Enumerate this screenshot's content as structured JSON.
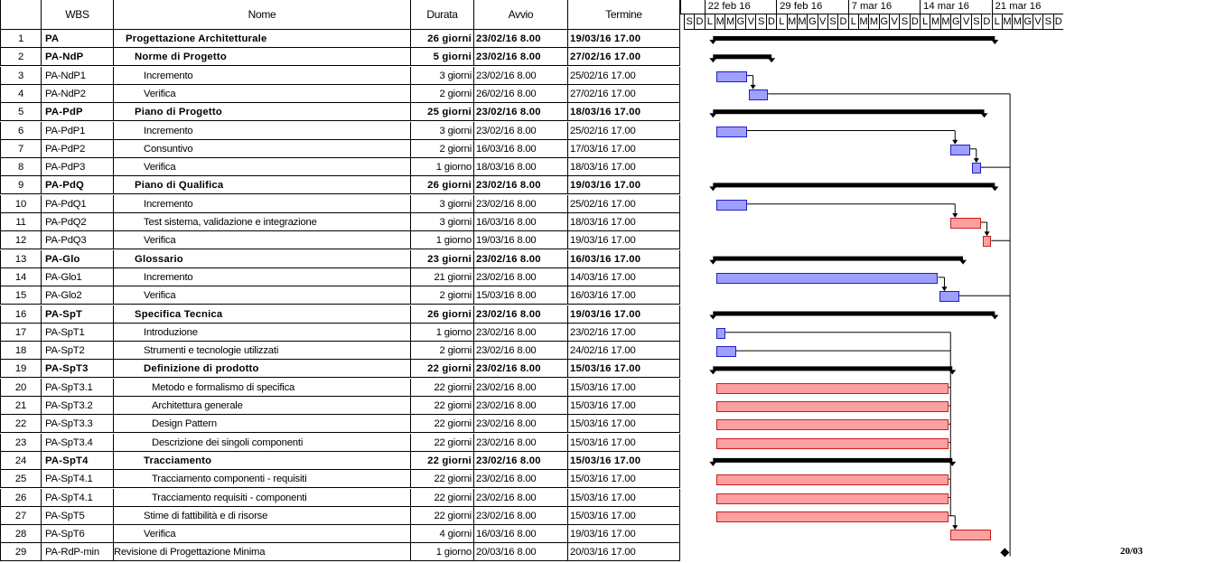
{
  "columns": {
    "num": "",
    "wbs": "WBS",
    "name": "Nome",
    "duration": "Durata",
    "start": "Avvio",
    "end": "Termine"
  },
  "timeline": {
    "weeks": [
      "22 feb 16",
      "29 feb 16",
      "7 mar 16",
      "14 mar 16",
      "21 mar 16"
    ],
    "days": [
      "S",
      "D",
      "L",
      "M",
      "M",
      "G",
      "V",
      "S",
      "D",
      "L",
      "M",
      "M",
      "G",
      "V",
      "S",
      "D",
      "L",
      "M",
      "M",
      "G",
      "V",
      "S",
      "D",
      "L",
      "M",
      "M",
      "G",
      "V",
      "S",
      "D",
      "L",
      "M",
      "M",
      "G",
      "V",
      "S",
      "D"
    ]
  },
  "colors": {
    "normal_task": "#9f9fff",
    "critical_task": "#ffa0a0",
    "summary": "#000000"
  },
  "milestone_label": "20/03",
  "tasks": [
    {
      "num": "1",
      "wbs": "PA",
      "name": "Progettazione Architetturale",
      "duration": "26 giorni",
      "start": "23/02/16 8.00",
      "end": "19/03/16 17.00",
      "indent": 1,
      "bold": true,
      "kind": "summary"
    },
    {
      "num": "2",
      "wbs": "PA-NdP",
      "name": "Norme di Progetto",
      "duration": "5 giorni",
      "start": "23/02/16 8.00",
      "end": "27/02/16 17.00",
      "indent": 2,
      "bold": true,
      "kind": "summary"
    },
    {
      "num": "3",
      "wbs": "PA-NdP1",
      "name": "Incremento",
      "duration": "3 giorni",
      "start": "23/02/16 8.00",
      "end": "25/02/16 17.00",
      "indent": 3,
      "bold": false,
      "kind": "normal"
    },
    {
      "num": "4",
      "wbs": "PA-NdP2",
      "name": "Verifica",
      "duration": "2 giorni",
      "start": "26/02/16 8.00",
      "end": "27/02/16 17.00",
      "indent": 3,
      "bold": false,
      "kind": "normal"
    },
    {
      "num": "5",
      "wbs": "PA-PdP",
      "name": "Piano di Progetto",
      "duration": "25 giorni",
      "start": "23/02/16 8.00",
      "end": "18/03/16 17.00",
      "indent": 2,
      "bold": true,
      "kind": "summary"
    },
    {
      "num": "6",
      "wbs": "PA-PdP1",
      "name": "Incremento",
      "duration": "3 giorni",
      "start": "23/02/16 8.00",
      "end": "25/02/16 17.00",
      "indent": 3,
      "bold": false,
      "kind": "normal"
    },
    {
      "num": "7",
      "wbs": "PA-PdP2",
      "name": "Consuntivo",
      "duration": "2 giorni",
      "start": "16/03/16 8.00",
      "end": "17/03/16 17.00",
      "indent": 3,
      "bold": false,
      "kind": "normal"
    },
    {
      "num": "8",
      "wbs": "PA-PdP3",
      "name": "Verifica",
      "duration": "1 giorno",
      "start": "18/03/16 8.00",
      "end": "18/03/16 17.00",
      "indent": 3,
      "bold": false,
      "kind": "normal"
    },
    {
      "num": "9",
      "wbs": "PA-PdQ",
      "name": "Piano di Qualifica",
      "duration": "26 giorni",
      "start": "23/02/16 8.00",
      "end": "19/03/16 17.00",
      "indent": 2,
      "bold": true,
      "kind": "summary"
    },
    {
      "num": "10",
      "wbs": "PA-PdQ1",
      "name": "Incremento",
      "duration": "3 giorni",
      "start": "23/02/16 8.00",
      "end": "25/02/16 17.00",
      "indent": 3,
      "bold": false,
      "kind": "normal"
    },
    {
      "num": "11",
      "wbs": "PA-PdQ2",
      "name": "Test sistema, validazione e integrazione",
      "duration": "3 giorni",
      "start": "16/03/16 8.00",
      "end": "18/03/16 17.00",
      "indent": 3,
      "bold": false,
      "kind": "critical"
    },
    {
      "num": "12",
      "wbs": "PA-PdQ3",
      "name": "Verifica",
      "duration": "1 giorno",
      "start": "19/03/16 8.00",
      "end": "19/03/16 17.00",
      "indent": 3,
      "bold": false,
      "kind": "critical"
    },
    {
      "num": "13",
      "wbs": "PA-Glo",
      "name": "Glossario",
      "duration": "23 giorni",
      "start": "23/02/16 8.00",
      "end": "16/03/16 17.00",
      "indent": 2,
      "bold": true,
      "kind": "summary"
    },
    {
      "num": "14",
      "wbs": "PA-Glo1",
      "name": "Incremento",
      "duration": "21 giorni",
      "start": "23/02/16 8.00",
      "end": "14/03/16 17.00",
      "indent": 3,
      "bold": false,
      "kind": "normal"
    },
    {
      "num": "15",
      "wbs": "PA-Glo2",
      "name": "Verifica",
      "duration": "2 giorni",
      "start": "15/03/16 8.00",
      "end": "16/03/16 17.00",
      "indent": 3,
      "bold": false,
      "kind": "normal"
    },
    {
      "num": "16",
      "wbs": "PA-SpT",
      "name": "Specifica Tecnica",
      "duration": "26 giorni",
      "start": "23/02/16 8.00",
      "end": "19/03/16 17.00",
      "indent": 2,
      "bold": true,
      "kind": "summary"
    },
    {
      "num": "17",
      "wbs": "PA-SpT1",
      "name": "Introduzione",
      "duration": "1 giorno",
      "start": "23/02/16 8.00",
      "end": "23/02/16 17.00",
      "indent": 3,
      "bold": false,
      "kind": "normal"
    },
    {
      "num": "18",
      "wbs": "PA-SpT2",
      "name": "Strumenti e tecnologie utilizzati",
      "duration": "2 giorni",
      "start": "23/02/16 8.00",
      "end": "24/02/16 17.00",
      "indent": 3,
      "bold": false,
      "kind": "normal"
    },
    {
      "num": "19",
      "wbs": "PA-SpT3",
      "name": "Definizione di prodotto",
      "duration": "22 giorni",
      "start": "23/02/16 8.00",
      "end": "15/03/16 17.00",
      "indent": 3,
      "bold": true,
      "kind": "summary"
    },
    {
      "num": "20",
      "wbs": "PA-SpT3.1",
      "name": "Metodo e formalismo di specifica",
      "duration": "22 giorni",
      "start": "23/02/16 8.00",
      "end": "15/03/16 17.00",
      "indent": 4,
      "bold": false,
      "kind": "critical"
    },
    {
      "num": "21",
      "wbs": "PA-SpT3.2",
      "name": "Architettura generale",
      "duration": "22 giorni",
      "start": "23/02/16 8.00",
      "end": "15/03/16 17.00",
      "indent": 4,
      "bold": false,
      "kind": "critical"
    },
    {
      "num": "22",
      "wbs": "PA-SpT3.3",
      "name": "Design Pattern",
      "duration": "22 giorni",
      "start": "23/02/16 8.00",
      "end": "15/03/16 17.00",
      "indent": 4,
      "bold": false,
      "kind": "critical"
    },
    {
      "num": "23",
      "wbs": "PA-SpT3.4",
      "name": "Descrizione dei singoli componenti",
      "duration": "22 giorni",
      "start": "23/02/16 8.00",
      "end": "15/03/16 17.00",
      "indent": 4,
      "bold": false,
      "kind": "critical"
    },
    {
      "num": "24",
      "wbs": "PA-SpT4",
      "name": "Tracciamento",
      "duration": "22 giorni",
      "start": "23/02/16 8.00",
      "end": "15/03/16 17.00",
      "indent": 3,
      "bold": true,
      "kind": "summary"
    },
    {
      "num": "25",
      "wbs": "PA-SpT4.1",
      "name": "Tracciamento componenti - requisiti",
      "duration": "22 giorni",
      "start": "23/02/16 8.00",
      "end": "15/03/16 17.00",
      "indent": 4,
      "bold": false,
      "kind": "critical"
    },
    {
      "num": "26",
      "wbs": "PA-SpT4.1",
      "name": "Tracciamento requisiti - componenti",
      "duration": "22 giorni",
      "start": "23/02/16 8.00",
      "end": "15/03/16 17.00",
      "indent": 4,
      "bold": false,
      "kind": "critical"
    },
    {
      "num": "27",
      "wbs": "PA-SpT5",
      "name": "Stime di fattibilità e di risorse",
      "duration": "22 giorni",
      "start": "23/02/16 8.00",
      "end": "15/03/16 17.00",
      "indent": 3,
      "bold": false,
      "kind": "critical"
    },
    {
      "num": "28",
      "wbs": "PA-SpT6",
      "name": "Verifica",
      "duration": "4 giorni",
      "start": "16/03/16 8.00",
      "end": "19/03/16 17.00",
      "indent": 3,
      "bold": false,
      "kind": "critical"
    },
    {
      "num": "29",
      "wbs": "PA-RdP-min",
      "name": "Revisione di Progettazione Minima",
      "duration": "1 giorno",
      "start": "20/03/16 8.00",
      "end": "20/03/16 17.00",
      "indent": 0,
      "bold": false,
      "kind": "milestone"
    }
  ]
}
